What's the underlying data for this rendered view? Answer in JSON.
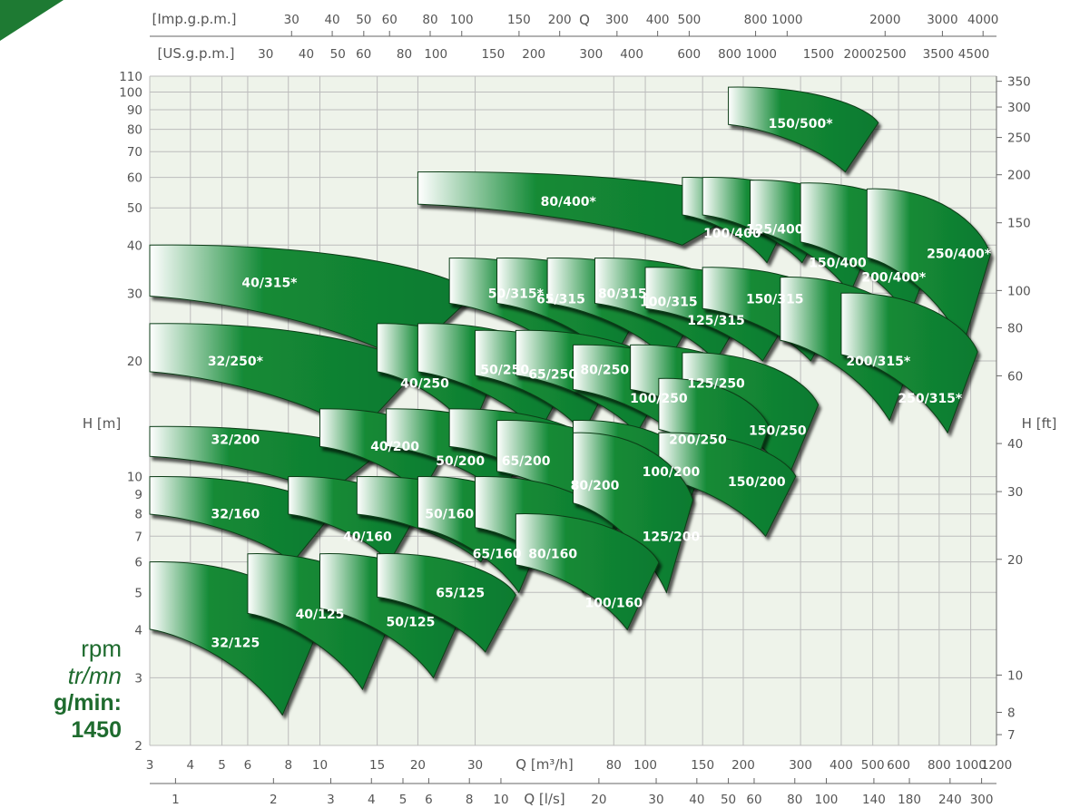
{
  "chart_data": {
    "type": "area",
    "title": "",
    "rpm_labels": {
      "line1": "rpm",
      "line2": "tr/mn",
      "line3": "g/min:",
      "line4": "1450"
    },
    "x_axis": {
      "label": "Q [m³/h]",
      "scale": "log",
      "range": [
        3,
        1200
      ],
      "ticks": [
        3,
        4,
        5,
        6,
        8,
        10,
        15,
        20,
        30,
        80,
        100,
        150,
        200,
        300,
        400,
        500,
        600,
        800,
        1000,
        1200
      ]
    },
    "x_axis_ls": {
      "label": "Q [l/s]",
      "ticks": [
        1,
        2,
        3,
        4,
        5,
        6,
        8,
        10,
        20,
        30,
        40,
        50,
        60,
        80,
        100,
        140,
        180,
        240,
        300
      ]
    },
    "x_axis_imp": {
      "label": "[Imp.g.p.m.]",
      "q_label": "Q",
      "ticks": [
        30,
        40,
        50,
        60,
        80,
        100,
        150,
        200,
        300,
        400,
        500,
        800,
        1000,
        2000,
        3000,
        4000
      ]
    },
    "x_axis_us": {
      "label": "[US.g.p.m.]",
      "ticks": [
        30,
        40,
        50,
        60,
        80,
        100,
        150,
        200,
        300,
        400,
        600,
        800,
        1000,
        1500,
        2000,
        2500,
        3500,
        4500
      ]
    },
    "y_axis": {
      "label": "H [m]",
      "scale": "log",
      "range": [
        2,
        110
      ],
      "ticks": [
        2,
        3,
        4,
        5,
        6,
        7,
        8,
        9,
        10,
        20,
        30,
        40,
        50,
        60,
        70,
        80,
        90,
        100,
        110
      ]
    },
    "y_axis_ft": {
      "label": "H [ft]",
      "ticks": [
        7,
        8,
        10,
        20,
        30,
        40,
        60,
        80,
        100,
        150,
        200,
        250,
        300,
        350
      ]
    },
    "grid": true,
    "colors": {
      "fill": "#138a36",
      "fade": "#ffffff",
      "edge": "#0a3d18",
      "grid": "#bcbcbc",
      "background": "#eef3ea"
    },
    "pumps": [
      {
        "name": "150/500*",
        "q": [
          180,
          520
        ],
        "h": [
          62,
          103
        ],
        "label_at": [
          300,
          83
        ]
      },
      {
        "name": "80/400*",
        "q": [
          20,
          220
        ],
        "h": [
          40,
          62
        ],
        "label_at": [
          58,
          52
        ]
      },
      {
        "name": "100/400",
        "q": [
          130,
          280
        ],
        "h": [
          36,
          60
        ],
        "label_at": [
          185,
          43
        ]
      },
      {
        "name": "125/400",
        "q": [
          150,
          370
        ],
        "h": [
          36,
          60
        ],
        "label_at": [
          250,
          44
        ]
      },
      {
        "name": "150/400",
        "q": [
          210,
          520
        ],
        "h": [
          30,
          59
        ],
        "label_at": [
          390,
          36
        ]
      },
      {
        "name": "200/400*",
        "q": [
          300,
          800
        ],
        "h": [
          26,
          58
        ],
        "label_at": [
          580,
          33
        ]
      },
      {
        "name": "250/400*",
        "q": [
          480,
          1150
        ],
        "h": [
          22,
          56
        ],
        "label_at": [
          920,
          38
        ]
      },
      {
        "name": "40/315*",
        "q": [
          3,
          30
        ],
        "h": [
          20,
          40
        ],
        "label_at": [
          7,
          32
        ]
      },
      {
        "name": "50/315*",
        "q": [
          25,
          75
        ],
        "h": [
          20,
          37
        ],
        "label_at": [
          40,
          30
        ]
      },
      {
        "name": "65/315",
        "q": [
          35,
          100
        ],
        "h": [
          20,
          37
        ],
        "label_at": [
          55,
          29
        ]
      },
      {
        "name": "80/315",
        "q": [
          50,
          150
        ],
        "h": [
          20,
          37
        ],
        "label_at": [
          85,
          30
        ]
      },
      {
        "name": "100/315",
        "q": [
          70,
          210
        ],
        "h": [
          20,
          37
        ],
        "label_at": [
          118,
          28.5
        ]
      },
      {
        "name": "125/315",
        "q": [
          100,
          290
        ],
        "h": [
          20,
          35
        ],
        "label_at": [
          165,
          25.5
        ]
      },
      {
        "name": "150/315",
        "q": [
          150,
          400
        ],
        "h": [
          20,
          35
        ],
        "label_at": [
          250,
          29
        ]
      },
      {
        "name": "200/315*",
        "q": [
          260,
          700
        ],
        "h": [
          14,
          33
        ],
        "label_at": [
          520,
          20
        ]
      },
      {
        "name": "250/315*",
        "q": [
          400,
          1050
        ],
        "h": [
          13,
          30
        ],
        "label_at": [
          750,
          16
        ]
      },
      {
        "name": "32/250*",
        "q": [
          3,
          20
        ],
        "h": [
          13,
          25
        ],
        "label_at": [
          5.5,
          20
        ]
      },
      {
        "name": "40/250",
        "q": [
          15,
          35
        ],
        "h": [
          13,
          25
        ],
        "label_at": [
          21,
          17.5
        ]
      },
      {
        "name": "50/250",
        "q": [
          20,
          60
        ],
        "h": [
          13,
          25
        ],
        "label_at": [
          37,
          19
        ]
      },
      {
        "name": "65/250",
        "q": [
          30,
          80
        ],
        "h": [
          13,
          24
        ],
        "label_at": [
          52,
          18.5
        ]
      },
      {
        "name": "80/250",
        "q": [
          40,
          120
        ],
        "h": [
          13,
          24
        ],
        "label_at": [
          75,
          19
        ]
      },
      {
        "name": "100/250",
        "q": [
          60,
          170
        ],
        "h": [
          12,
          22
        ],
        "label_at": [
          110,
          16
        ]
      },
      {
        "name": "125/250",
        "q": [
          90,
          230
        ],
        "h": [
          12,
          22
        ],
        "label_at": [
          165,
          17.5
        ]
      },
      {
        "name": "150/250",
        "q": [
          130,
          340
        ],
        "h": [
          10,
          21
        ],
        "label_at": [
          255,
          13.2
        ]
      },
      {
        "name": "200/250",
        "q": [
          110,
          240
        ],
        "h": [
          9,
          18
        ],
        "label_at": [
          145,
          12.5
        ]
      },
      {
        "name": "32/200",
        "q": [
          3,
          15
        ],
        "h": [
          9,
          13.5
        ],
        "label_at": [
          5.5,
          12.5
        ]
      },
      {
        "name": "40/200",
        "q": [
          10,
          25
        ],
        "h": [
          9,
          15
        ],
        "label_at": [
          17,
          12
        ]
      },
      {
        "name": "50/200",
        "q": [
          16,
          45
        ],
        "h": [
          9,
          15
        ],
        "label_at": [
          27,
          11
        ]
      },
      {
        "name": "65/200",
        "q": [
          25,
          70
        ],
        "h": [
          9,
          15
        ],
        "label_at": [
          43,
          11
        ]
      },
      {
        "name": "80/200",
        "q": [
          35,
          100
        ],
        "h": [
          7,
          14
        ],
        "label_at": [
          70,
          9.5
        ]
      },
      {
        "name": "100/200",
        "q": [
          60,
          150
        ],
        "h": [
          7,
          14
        ],
        "label_at": [
          120,
          10.3
        ]
      },
      {
        "name": "150/200",
        "q": [
          110,
          290
        ],
        "h": [
          7,
          13
        ],
        "label_at": [
          220,
          9.7
        ]
      },
      {
        "name": "32/160",
        "q": [
          3,
          11
        ],
        "h": [
          6,
          10
        ],
        "label_at": [
          5.5,
          8
        ]
      },
      {
        "name": "40/160",
        "q": [
          8,
          20
        ],
        "h": [
          6,
          10
        ],
        "label_at": [
          14,
          7
        ]
      },
      {
        "name": "50/160",
        "q": [
          13,
          40
        ],
        "h": [
          6,
          10
        ],
        "label_at": [
          25,
          8
        ]
      },
      {
        "name": "65/160",
        "q": [
          20,
          50
        ],
        "h": [
          5,
          10
        ],
        "label_at": [
          35,
          6.3
        ]
      },
      {
        "name": "80/160",
        "q": [
          30,
          80
        ],
        "h": [
          5,
          10
        ],
        "label_at": [
          52,
          6.3
        ]
      },
      {
        "name": "125/200",
        "q": [
          60,
          140
        ],
        "h": [
          5,
          13
        ],
        "label_at": [
          120,
          7
        ]
      },
      {
        "name": "100/160",
        "q": [
          40,
          110
        ],
        "h": [
          4,
          8
        ],
        "label_at": [
          80,
          4.7
        ]
      },
      {
        "name": "32/125",
        "q": [
          3,
          10
        ],
        "h": [
          2.4,
          6
        ],
        "label_at": [
          5.5,
          3.7
        ]
      },
      {
        "name": "40/125",
        "q": [
          6,
          17
        ],
        "h": [
          2.8,
          6.3
        ],
        "label_at": [
          10,
          4.4
        ]
      },
      {
        "name": "50/125",
        "q": [
          10,
          28
        ],
        "h": [
          3,
          6.3
        ],
        "label_at": [
          19,
          4.2
        ]
      },
      {
        "name": "65/125",
        "q": [
          15,
          40
        ],
        "h": [
          3.5,
          6.3
        ],
        "label_at": [
          27,
          5
        ]
      }
    ]
  }
}
